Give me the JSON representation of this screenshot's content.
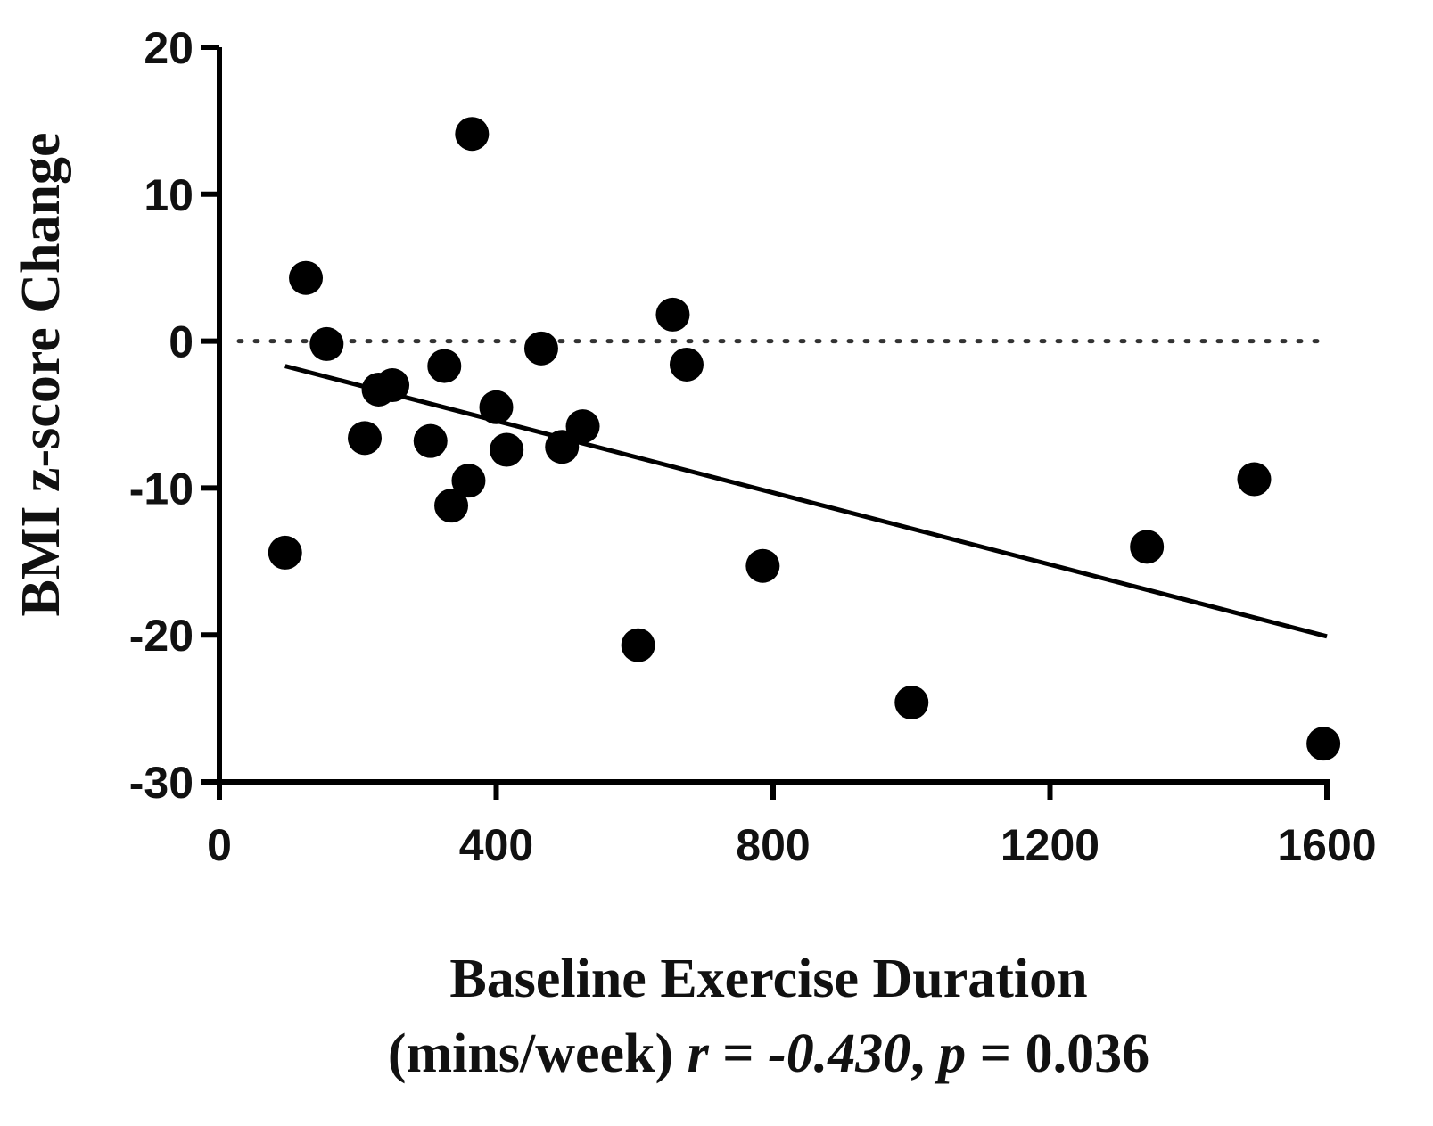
{
  "chart_data": {
    "type": "scatter",
    "title": "",
    "xlabel": "Baseline Exercise Duration",
    "xlabel_line2": {
      "prefix": "(mins/week) ",
      "r_symbol": "r",
      "r_eq": " = ",
      "r_value": "-0.430",
      "comma": ", ",
      "p_symbol": "p",
      "p_eq": " = ",
      "p_value": "0.036"
    },
    "ylabel": "BMI z-score Change",
    "xlim": [
      0,
      1600
    ],
    "ylim": [
      -30,
      20
    ],
    "xticks": [
      0,
      400,
      800,
      1200,
      1600
    ],
    "xtick_labels": [
      "0",
      "400",
      "800",
      "1200",
      "1600"
    ],
    "yticks": [
      -30,
      -20,
      -10,
      0,
      10,
      20
    ],
    "ytick_labels": [
      "-30",
      "-20",
      "-10",
      "0",
      "10",
      "20"
    ],
    "reference_line": {
      "y": 0,
      "style": "dotted"
    },
    "regression_line": {
      "x": [
        95,
        1600
      ],
      "y": [
        -1.7,
        -20.1
      ]
    },
    "points": [
      {
        "x": 95,
        "y": -14.4
      },
      {
        "x": 125,
        "y": 4.3
      },
      {
        "x": 155,
        "y": -0.2
      },
      {
        "x": 210,
        "y": -6.6
      },
      {
        "x": 230,
        "y": -3.3
      },
      {
        "x": 250,
        "y": -3.0
      },
      {
        "x": 305,
        "y": -6.8
      },
      {
        "x": 325,
        "y": -1.7
      },
      {
        "x": 335,
        "y": -11.2
      },
      {
        "x": 360,
        "y": -9.5
      },
      {
        "x": 365,
        "y": 14.1
      },
      {
        "x": 400,
        "y": -4.5
      },
      {
        "x": 415,
        "y": -7.4
      },
      {
        "x": 465,
        "y": -0.5
      },
      {
        "x": 495,
        "y": -7.2
      },
      {
        "x": 525,
        "y": -5.8
      },
      {
        "x": 605,
        "y": -20.7
      },
      {
        "x": 655,
        "y": 1.8
      },
      {
        "x": 675,
        "y": -1.6
      },
      {
        "x": 785,
        "y": -15.3
      },
      {
        "x": 1000,
        "y": -24.6
      },
      {
        "x": 1340,
        "y": -14.0
      },
      {
        "x": 1495,
        "y": -9.4
      },
      {
        "x": 1595,
        "y": -27.4
      }
    ],
    "marker_color": "#000000",
    "grid": false,
    "legend": "none"
  }
}
